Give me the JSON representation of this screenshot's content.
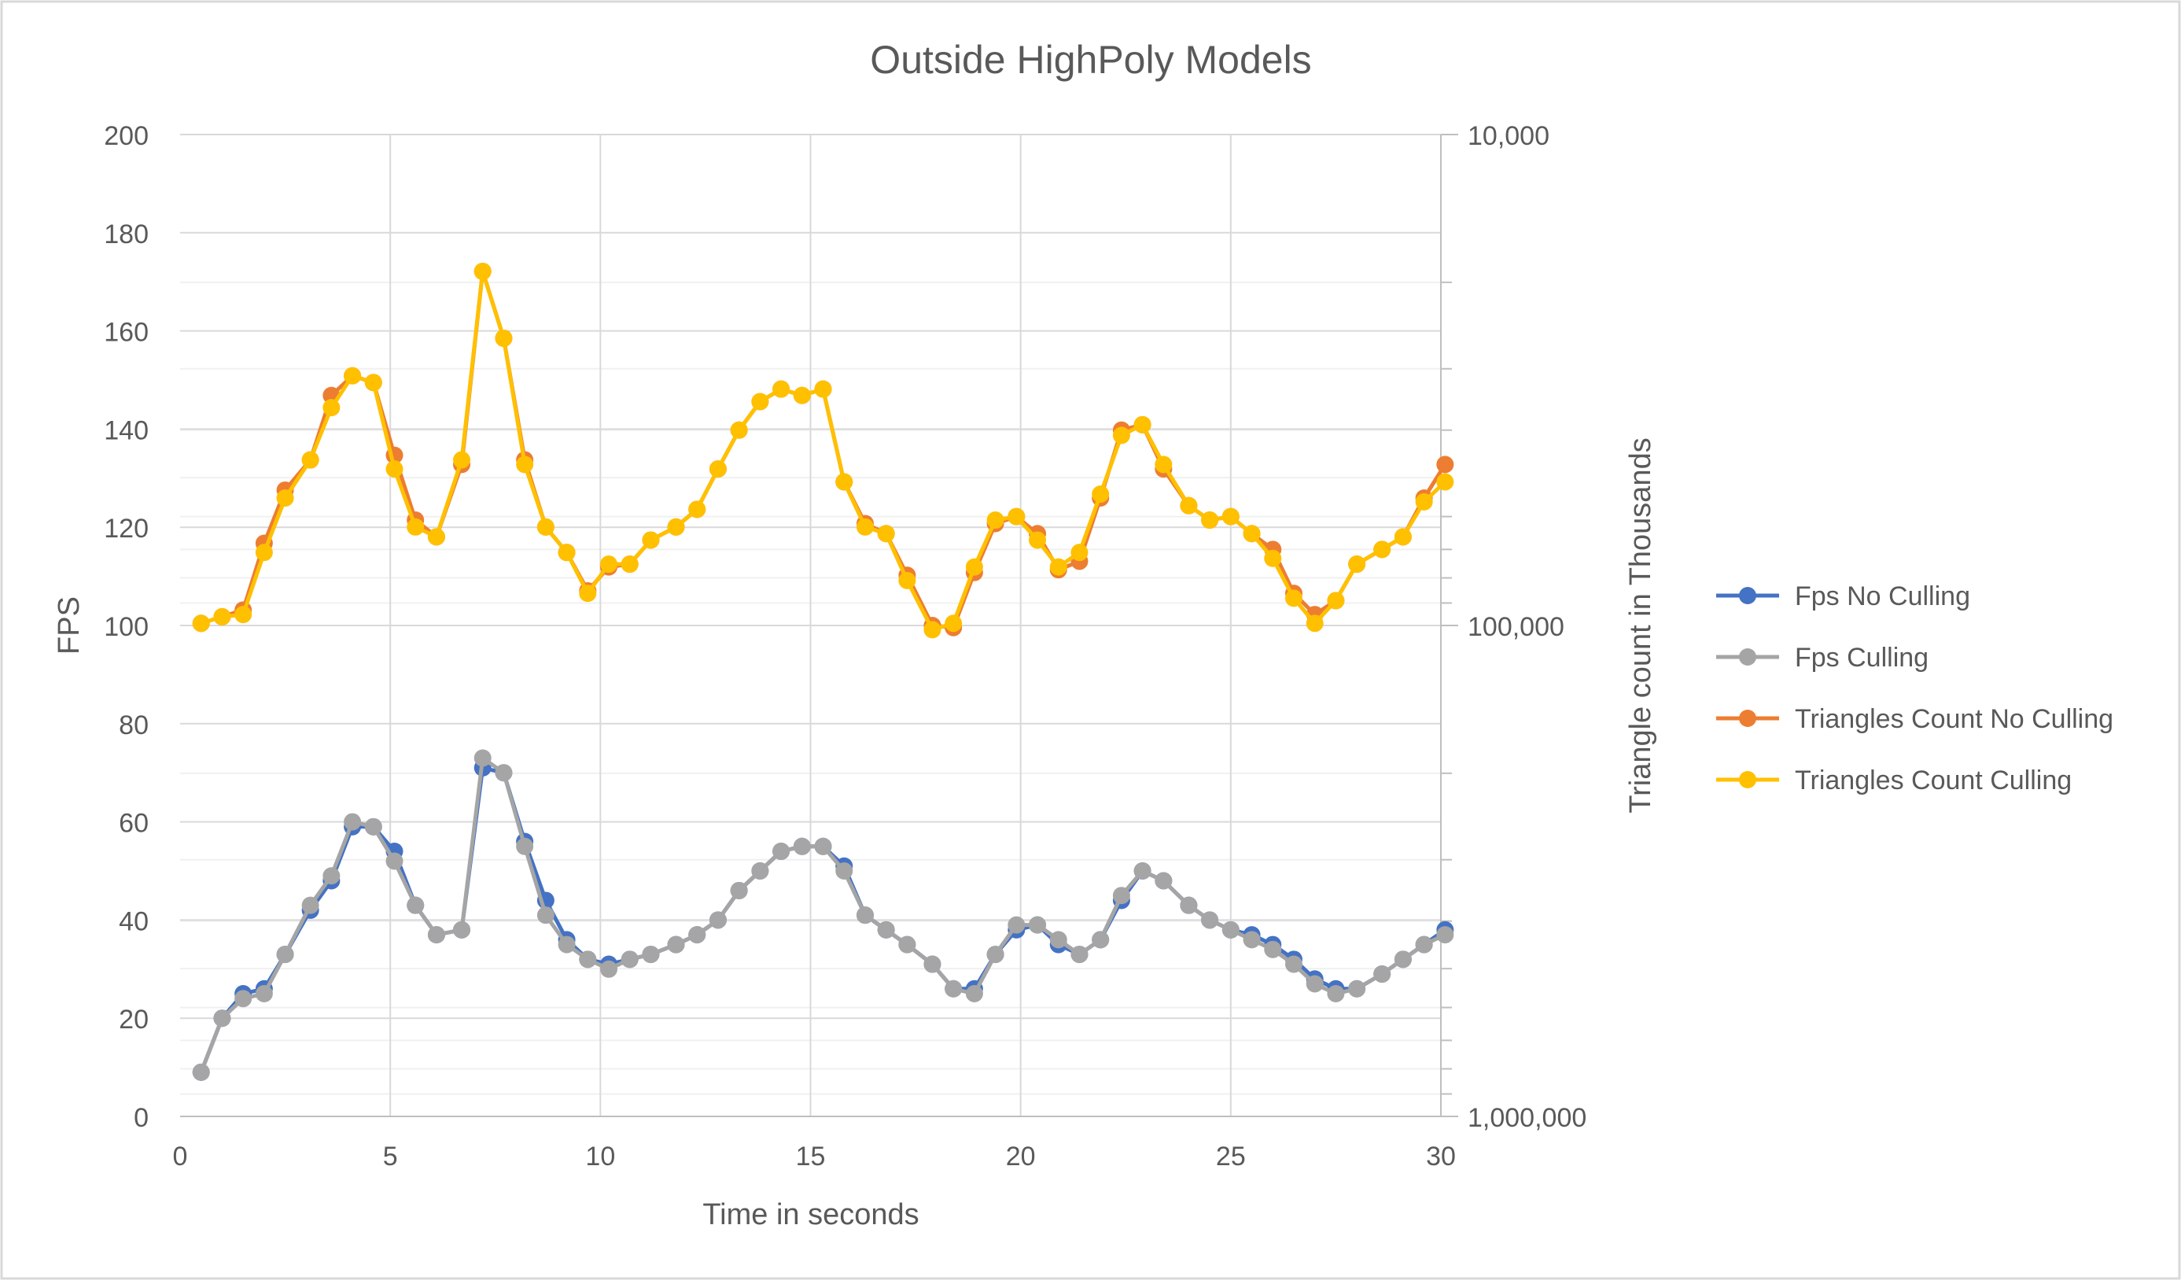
{
  "chart_data": {
    "type": "line",
    "title": "Outside HighPoly Models",
    "xlabel": "Time in seconds",
    "ylabel": "FPS",
    "y2label": "Triangle count in Thousands",
    "xlim": [
      0,
      30
    ],
    "ylim": [
      0,
      200
    ],
    "y2lim": [
      1000000,
      10000
    ],
    "y2scale": "log",
    "y2reversed": true,
    "x_ticks": [
      "0",
      "5",
      "10",
      "15",
      "20",
      "25",
      "30"
    ],
    "y_ticks": [
      "0",
      "20",
      "40",
      "60",
      "80",
      "100",
      "120",
      "140",
      "160",
      "180",
      "200"
    ],
    "y2_ticks": [
      "1,000,000",
      "100,000",
      "10,000"
    ],
    "grid": true,
    "legend_position": "right",
    "x": [
      0.5,
      1.0,
      1.5,
      2.0,
      2.5,
      3.1,
      3.6,
      4.1,
      4.6,
      5.1,
      5.6,
      6.1,
      6.7,
      7.2,
      7.7,
      8.2,
      8.7,
      9.2,
      9.7,
      10.2,
      10.7,
      11.2,
      11.8,
      12.3,
      12.8,
      13.3,
      13.8,
      14.3,
      14.8,
      15.3,
      15.8,
      16.3,
      16.8,
      17.3,
      17.9,
      18.4,
      18.9,
      19.4,
      19.9,
      20.4,
      20.9,
      21.4,
      21.9,
      22.4,
      22.9,
      23.4,
      24.0,
      24.5,
      25.0,
      25.5,
      26.0,
      26.5,
      27.0,
      27.5,
      28.0,
      28.6,
      29.1,
      29.6,
      30.1
    ],
    "series": [
      {
        "name": "Fps No Culling",
        "axis": "left",
        "color": "#4472C4",
        "values": [
          9,
          20,
          25,
          26,
          33,
          42,
          48,
          59,
          59,
          54,
          43,
          37,
          38,
          71,
          70,
          56,
          44,
          36,
          32,
          31,
          32,
          33,
          35,
          37,
          40,
          46,
          50,
          54,
          55,
          55,
          51,
          41,
          38,
          35,
          31,
          26,
          26,
          33,
          38,
          39,
          35,
          33,
          36,
          44,
          50,
          48,
          43,
          40,
          38,
          37,
          35,
          32,
          28,
          26,
          26,
          29,
          32,
          35,
          38
        ]
      },
      {
        "name": "Fps Culling",
        "axis": "left",
        "color": "#A5A5A5",
        "values": [
          9,
          20,
          24,
          25,
          33,
          43,
          49,
          60,
          59,
          52,
          43,
          37,
          38,
          73,
          70,
          55,
          41,
          35,
          32,
          30,
          32,
          33,
          35,
          37,
          40,
          46,
          50,
          54,
          55,
          55,
          50,
          41,
          38,
          35,
          31,
          26,
          25,
          33,
          39,
          39,
          36,
          33,
          36,
          45,
          50,
          48,
          43,
          40,
          38,
          36,
          34,
          31,
          27,
          25,
          26,
          29,
          32,
          35,
          37
        ]
      },
      {
        "name": "Triangles Count No Culling",
        "axis": "right",
        "color": "#ED7D31",
        "values": [
          99000,
          96000,
          93000,
          68000,
          53000,
          46000,
          34000,
          31000,
          32000,
          45000,
          61000,
          66000,
          47000,
          19000,
          26000,
          46000,
          63000,
          71000,
          85000,
          76000,
          75000,
          67000,
          63000,
          58000,
          48000,
          40000,
          35000,
          33000,
          34000,
          33000,
          51000,
          62000,
          65000,
          79000,
          100000,
          101000,
          78000,
          62000,
          60000,
          65000,
          77000,
          74000,
          55000,
          40000,
          39000,
          48000,
          57000,
          61000,
          60000,
          65000,
          70000,
          86000,
          95000,
          89000,
          75000,
          70000,
          66000,
          55000,
          47000
        ]
      },
      {
        "name": "Triangles Count Culling",
        "axis": "right",
        "color": "#FFC000",
        "values": [
          99000,
          96000,
          95000,
          71000,
          55000,
          46000,
          36000,
          31000,
          32000,
          48000,
          63000,
          66000,
          46000,
          19000,
          26000,
          47000,
          63000,
          71000,
          86000,
          75000,
          75000,
          67000,
          63000,
          58000,
          48000,
          40000,
          35000,
          33000,
          34000,
          33000,
          51000,
          63000,
          65000,
          81000,
          102000,
          99000,
          76000,
          61000,
          60000,
          67000,
          76000,
          71000,
          54000,
          41000,
          39000,
          47000,
          57000,
          61000,
          60000,
          65000,
          73000,
          88000,
          99000,
          89000,
          75000,
          70000,
          66000,
          56000,
          51000
        ]
      }
    ]
  }
}
